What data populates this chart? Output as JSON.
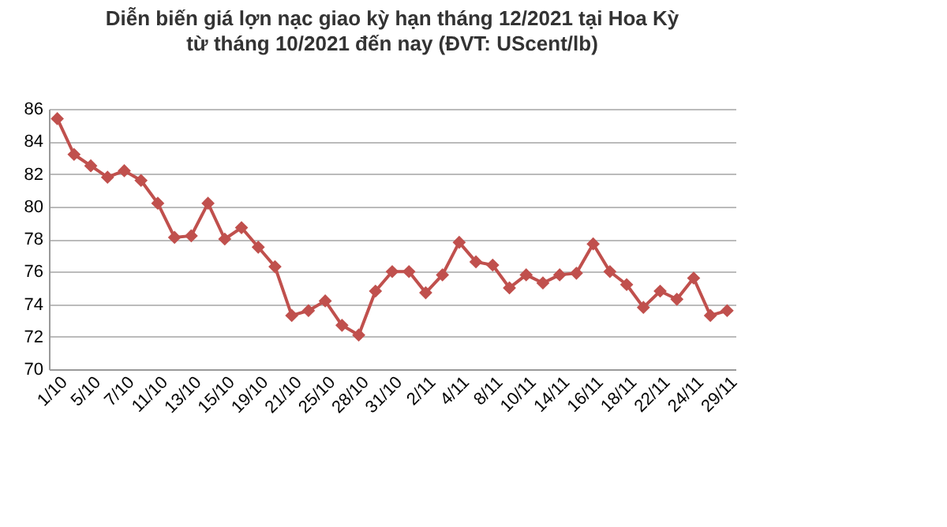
{
  "chart_data": {
    "type": "line",
    "title": "Diễn biến giá lợn nạc giao kỳ hạn tháng 12/2021 tại Hoa Kỳ",
    "subtitle": "từ tháng 10/2021 đến nay (ĐVT: UScent/lb)",
    "categories": [
      "1/10",
      null,
      "5/10",
      null,
      "7/10",
      null,
      "11/10",
      null,
      "13/10",
      null,
      "15/10",
      null,
      "19/10",
      null,
      "21/10",
      null,
      "25/10",
      null,
      "28/10",
      null,
      "31/10",
      null,
      "2/11",
      null,
      "4/11",
      null,
      "8/11",
      null,
      "10/11",
      null,
      "14/11",
      null,
      "16/11",
      null,
      "18/11",
      null,
      "22/11",
      null,
      "24/11",
      null,
      "29/11"
    ],
    "series": [
      {
        "color": "#c0504d",
        "values": [
          85.4,
          83.2,
          82.5,
          81.8,
          82.2,
          81.6,
          80.2,
          78.1,
          78.2,
          80.2,
          78.0,
          78.7,
          77.5,
          76.3,
          73.3,
          73.6,
          74.2,
          72.7,
          72.1,
          74.8,
          76.0,
          76.0,
          74.7,
          75.8,
          77.8,
          76.6,
          76.4,
          75.0,
          75.8,
          75.3,
          75.8,
          75.9,
          77.7,
          76.0,
          75.2,
          73.8,
          74.8,
          74.3,
          75.6,
          73.3,
          73.6
        ]
      }
    ],
    "ylim": [
      70,
      86
    ],
    "yticks": [
      70,
      72,
      74,
      76,
      78,
      80,
      82,
      84,
      86
    ],
    "grid": "y",
    "marker": "diamond",
    "line_style": "solid"
  }
}
